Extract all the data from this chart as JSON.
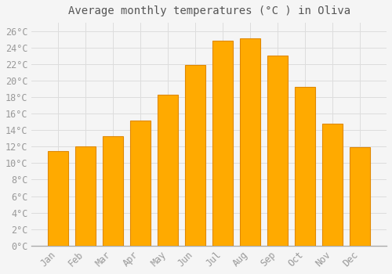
{
  "title": "Average monthly temperatures (°C ) in Oliva",
  "months": [
    "Jan",
    "Feb",
    "Mar",
    "Apr",
    "May",
    "Jun",
    "Jul",
    "Aug",
    "Sep",
    "Oct",
    "Nov",
    "Dec"
  ],
  "temperatures": [
    11.5,
    12.0,
    13.3,
    15.2,
    18.3,
    21.9,
    24.8,
    25.1,
    23.0,
    19.2,
    14.8,
    11.9
  ],
  "bar_color": "#FFAA00",
  "bar_edge_color": "#E08800",
  "background_color": "#F5F5F5",
  "plot_bg_color": "#F5F5F5",
  "grid_color": "#DDDDDD",
  "text_color": "#999999",
  "title_color": "#555555",
  "spine_color": "#AAAAAA",
  "ylim": [
    0,
    27
  ],
  "ytick_step": 2,
  "title_fontsize": 10,
  "tick_fontsize": 8.5,
  "bar_width": 0.75
}
